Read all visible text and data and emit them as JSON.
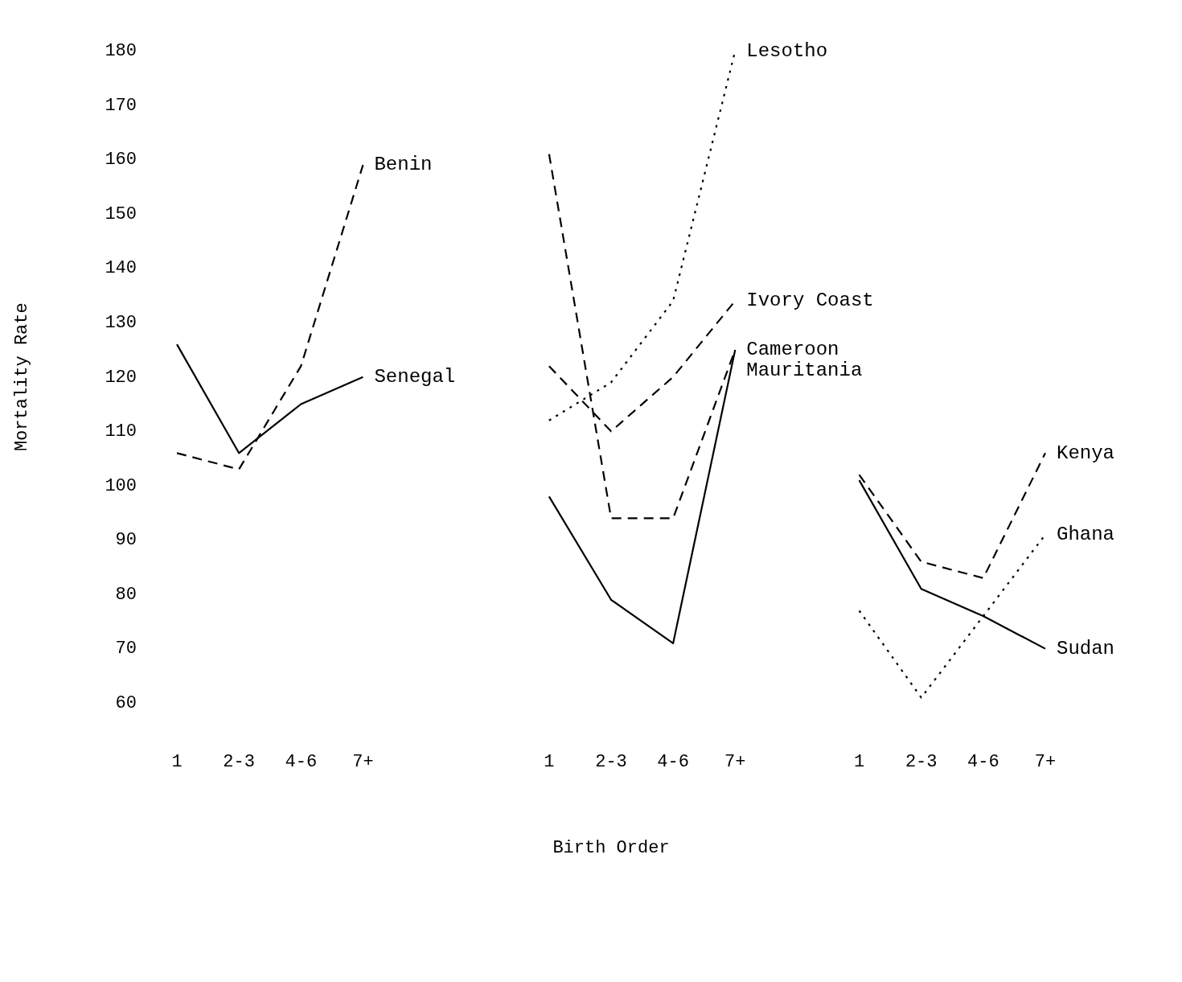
{
  "chart_data": {
    "type": "line",
    "xlabel": "Birth Order",
    "ylabel": "Mortality Rate",
    "categories": [
      "1",
      "2-3",
      "4-6",
      "7+",
      null,
      null,
      "1",
      "2-3",
      "4-6",
      "7+",
      null,
      "1",
      "2-3",
      "4-6",
      "7+"
    ],
    "ylim": [
      60,
      180
    ],
    "yticks": [
      60,
      70,
      80,
      90,
      100,
      110,
      120,
      130,
      140,
      150,
      160,
      170,
      180
    ],
    "grid": false,
    "legend": false,
    "marker": "none",
    "series": [
      {
        "name": "Benin",
        "color": "#000000",
        "line_style": "dashed",
        "values": [
          106,
          103,
          122,
          159,
          null,
          null,
          null,
          null,
          null,
          null,
          null,
          null,
          null,
          null,
          null
        ]
      },
      {
        "name": "Senegal",
        "color": "#000000",
        "line_style": "solid",
        "values": [
          126,
          106,
          115,
          120,
          null,
          null,
          null,
          null,
          null,
          null,
          null,
          null,
          null,
          null,
          null
        ]
      },
      {
        "name": "Lesotho",
        "color": "#000000",
        "line_style": "dotted",
        "values": [
          null,
          null,
          null,
          null,
          null,
          null,
          112,
          119,
          134,
          180,
          null,
          null,
          null,
          null,
          null
        ]
      },
      {
        "name": "Ivory Coast",
        "color": "#000000",
        "line_style": "dashed",
        "values": [
          null,
          null,
          null,
          null,
          null,
          null,
          122,
          110,
          120,
          134,
          null,
          null,
          null,
          null,
          null
        ]
      },
      {
        "name": "Cameroon",
        "color": "#000000",
        "line_style": "dashed",
        "values": [
          null,
          null,
          null,
          null,
          null,
          null,
          161,
          94,
          94,
          125,
          null,
          null,
          null,
          null,
          null
        ]
      },
      {
        "name": "Mauritania",
        "color": "#000000",
        "line_style": "solid",
        "values": [
          null,
          null,
          null,
          null,
          null,
          null,
          98,
          79,
          71,
          125,
          null,
          null,
          null,
          null,
          null
        ]
      },
      {
        "name": "Kenya",
        "color": "#000000",
        "line_style": "dashed",
        "values": [
          null,
          null,
          null,
          null,
          null,
          null,
          null,
          null,
          null,
          null,
          null,
          102,
          86,
          83,
          106
        ]
      },
      {
        "name": "Ghana",
        "color": "#000000",
        "line_style": "dotted",
        "values": [
          null,
          null,
          null,
          null,
          null,
          null,
          null,
          null,
          null,
          null,
          null,
          77,
          61,
          76,
          91
        ]
      },
      {
        "name": "Sudan",
        "color": "#000000",
        "line_style": "solid",
        "values": [
          null,
          null,
          null,
          null,
          null,
          null,
          null,
          null,
          null,
          null,
          null,
          101,
          81,
          76,
          70
        ]
      }
    ]
  }
}
